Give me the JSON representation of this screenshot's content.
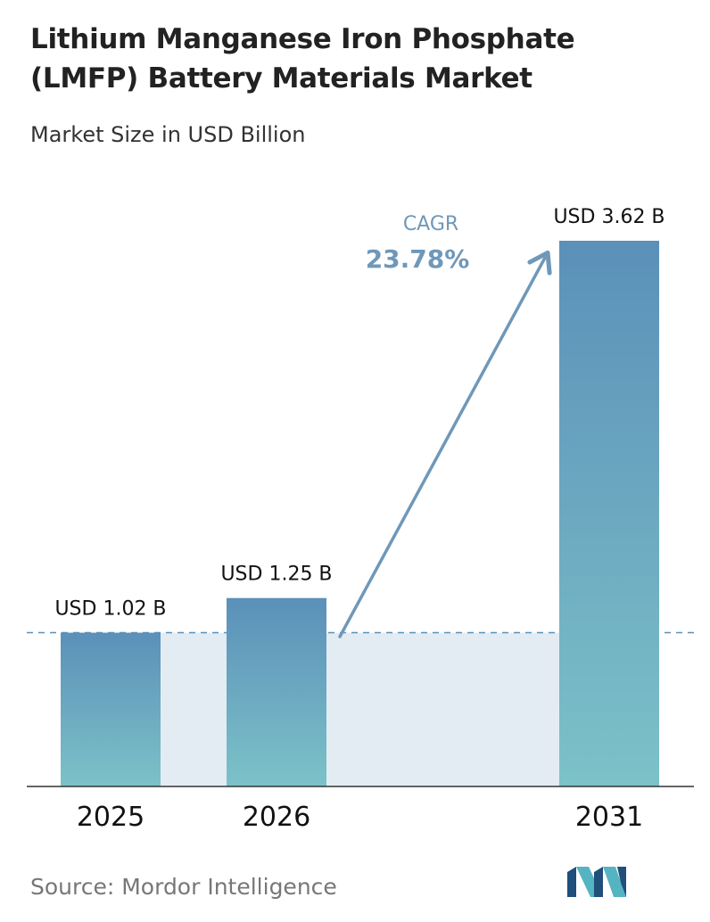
{
  "title": "Lithium Manganese Iron Phosphate (LMFP) Battery Materials Market",
  "subtitle": "Market Size in USD Billion",
  "source": "Source: Mordor Intelligence",
  "colors": {
    "bar_top": "#5b90b9",
    "bar_bottom": "#7cc2c8",
    "band": "#e4ecf3",
    "arrow": "#6f98b9",
    "dashed_line": "#5b90b9",
    "axis": "#333333"
  },
  "chart_data": {
    "type": "bar",
    "categories": [
      "2025",
      "2026",
      "2031"
    ],
    "values": [
      1.02,
      1.25,
      3.62
    ],
    "value_labels": [
      "USD 1.02 B",
      "USD 1.25 B",
      "USD 3.62 B"
    ],
    "unit": "USD Billion",
    "ylim": [
      0,
      3.62
    ],
    "grid": false,
    "annotation": {
      "label": "CAGR",
      "value": "23.78%",
      "arrow_from": "2026",
      "arrow_to": "2031"
    },
    "reference_line": {
      "value": 1.02,
      "style": "dashed"
    }
  },
  "logo": {
    "icon": "mordor-intelligence-logo-icon"
  }
}
